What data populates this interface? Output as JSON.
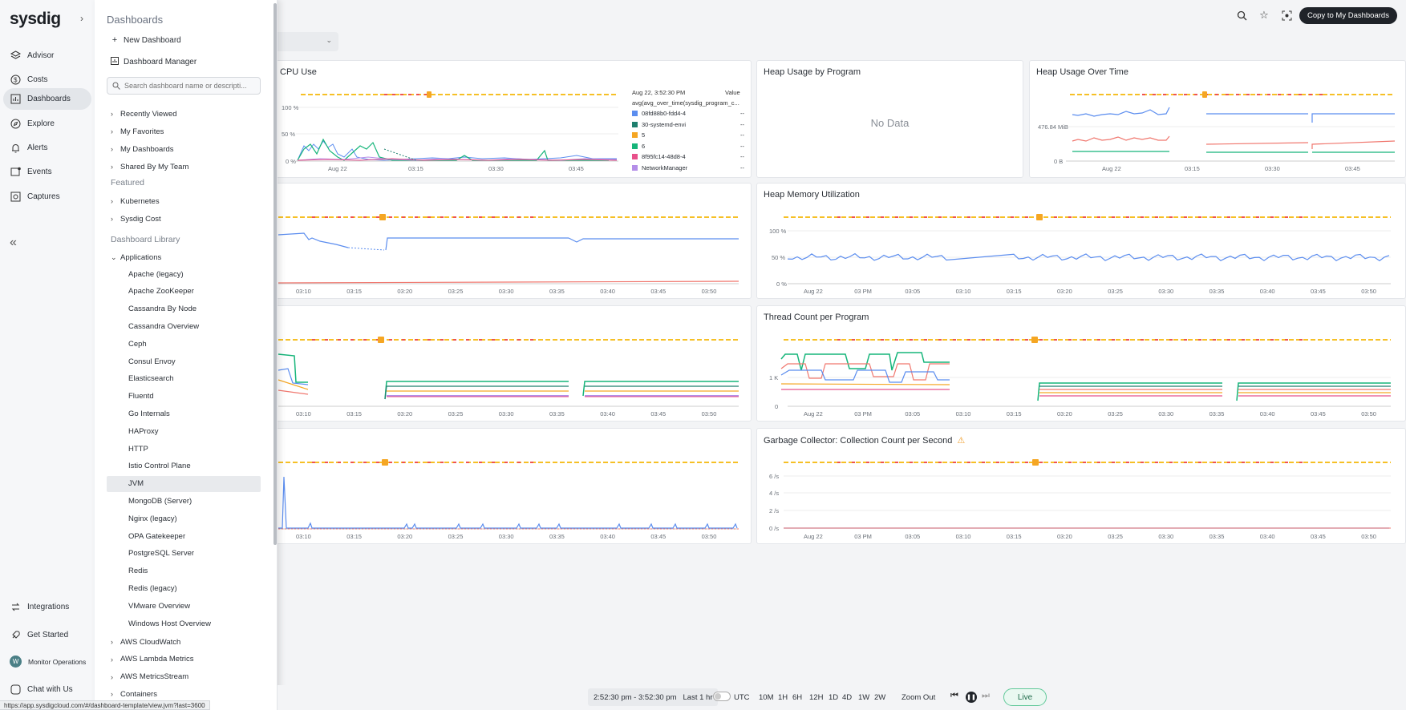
{
  "app": {
    "logo": "sysdig"
  },
  "nav": {
    "items": [
      {
        "label": "Advisor",
        "icon": "layers-icon"
      },
      {
        "label": "Costs",
        "icon": "dollar-icon"
      },
      {
        "label": "Dashboards",
        "icon": "chart-icon"
      },
      {
        "label": "Explore",
        "icon": "compass-icon"
      },
      {
        "label": "Alerts",
        "icon": "bell-icon"
      },
      {
        "label": "Events",
        "icon": "events-icon"
      },
      {
        "label": "Captures",
        "icon": "capture-icon"
      }
    ],
    "bottom": [
      {
        "label": "Integrations",
        "icon": "integrations-icon"
      },
      {
        "label": "Get Started",
        "icon": "rocket-icon"
      },
      {
        "label": "Monitor Operations",
        "avatar": "W"
      },
      {
        "label": "Chat with Us",
        "icon": "chat-icon"
      }
    ]
  },
  "panel": {
    "title": "Dashboards",
    "new_dashboard": "New Dashboard",
    "dashboard_manager": "Dashboard Manager",
    "search_placeholder": "Search dashboard name or descripti...",
    "groups": [
      "Recently Viewed",
      "My Favorites",
      "My Dashboards",
      "Shared By My Team"
    ],
    "featured_label": "Featured",
    "featured": [
      "Kubernetes",
      "Sysdig Cost"
    ],
    "library_label": "Dashboard Library",
    "applications_label": "Applications",
    "applications": [
      "Apache (legacy)",
      "Apache ZooKeeper",
      "Cassandra By Node",
      "Cassandra Overview",
      "Ceph",
      "Consul Envoy",
      "Elasticsearch",
      "Fluentd",
      "Go Internals",
      "HAProxy",
      "HTTP",
      "Istio Control Plane",
      "JVM",
      "MongoDB (Server)",
      "Nginx (legacy)",
      "OPA Gatekeeper",
      "PostgreSQL Server",
      "Redis",
      "Redis (legacy)",
      "VMware Overview",
      "Windows Host Overview"
    ],
    "selected": "JVM",
    "more_groups": [
      "AWS CloudWatch",
      "AWS Lambda Metrics",
      "AWS MetricsStream",
      "Containers"
    ]
  },
  "status_url": "https://app.sysdigcloud.com/#/dashboard-template/view.jvm?last=3600",
  "topbar": {
    "copy_button": "Copy to My Dashboards"
  },
  "widgets": {
    "cpu": {
      "title": "CPU Use",
      "y_ticks": [
        "100 %",
        "50 %",
        "0 %"
      ],
      "x_ticks": [
        "Aug 22",
        "03:15",
        "03:30",
        "03:45"
      ],
      "legend_time": "Aug 22, 3:52:30 PM",
      "legend_value_header": "Value",
      "legend_query": "avg(avg_over_time(sysdig_program_c...",
      "legend": [
        {
          "name": "08fd88b0-fdd4-4",
          "color": "#5b8def",
          "value": "--"
        },
        {
          "name": "30-systemd-envi",
          "color": "#1e7f6e",
          "value": "--"
        },
        {
          "name": "5",
          "color": "#f5a623",
          "value": "--"
        },
        {
          "name": "6",
          "color": "#16b57a",
          "value": "--"
        },
        {
          "name": "8f95fc14-48d8-4",
          "color": "#e8508a",
          "value": "--"
        },
        {
          "name": "NetworkManager",
          "color": "#b48ee8",
          "value": "--"
        }
      ]
    },
    "heap_program": {
      "title": "Heap Usage by Program",
      "nodata": "No Data"
    },
    "heap_time": {
      "title": "Heap Usage Over Time",
      "y_ticks": [
        "476.84 MiB",
        "0 B"
      ],
      "x_ticks": [
        "Aug 22",
        "03:15",
        "03:30",
        "03:45"
      ]
    },
    "row2_left": {
      "x_ticks": [
        "03:10",
        "03:15",
        "03:20",
        "03:25",
        "03:30",
        "03:35",
        "03:40",
        "03:45",
        "03:50"
      ]
    },
    "heap_mem": {
      "title": "Heap Memory Utilization",
      "y_ticks": [
        "100 %",
        "50 %",
        "0 %"
      ],
      "x_ticks": [
        "Aug 22",
        "03 PM",
        "03:05",
        "03:10",
        "03:15",
        "03:20",
        "03:25",
        "03:30",
        "03:35",
        "03:40",
        "03:45",
        "03:50"
      ]
    },
    "row3_left": {
      "x_ticks": [
        "03:10",
        "03:15",
        "03:20",
        "03:25",
        "03:30",
        "03:35",
        "03:40",
        "03:45",
        "03:50"
      ]
    },
    "thread": {
      "title": "Thread Count per Program",
      "y_ticks": [
        "1 K",
        "0"
      ],
      "x_ticks": [
        "Aug 22",
        "03 PM",
        "03:05",
        "03:10",
        "03:15",
        "03:20",
        "03:25",
        "03:30",
        "03:35",
        "03:40",
        "03:45",
        "03:50"
      ]
    },
    "row4_left": {
      "x_ticks": [
        "03:10",
        "03:15",
        "03:20",
        "03:25",
        "03:30",
        "03:35",
        "03:40",
        "03:45",
        "03:50"
      ]
    },
    "gc": {
      "title": "Garbage Collector: Collection Count per Second",
      "y_ticks": [
        "6 /s",
        "4 /s",
        "2 /s",
        "0 /s"
      ],
      "x_ticks": [
        "Aug 22",
        "03 PM",
        "03:05",
        "03:10",
        "03:15",
        "03:20",
        "03:25",
        "03:30",
        "03:35",
        "03:40",
        "03:45",
        "03:50"
      ]
    }
  },
  "bottom": {
    "timerange": "2:52:30 pm - 3:52:30 pm",
    "last": "Last 1 hr",
    "utc": "UTC",
    "ranges": [
      "10M",
      "1H",
      "6H",
      "12H",
      "1D",
      "4D",
      "1W",
      "2W"
    ],
    "zoom_out": "Zoom Out",
    "live": "Live"
  },
  "colors": {
    "accent_green": "#61c99a",
    "event_red": "#ef5350",
    "event_orange": "#f5a623",
    "event_yellow": "#f6c026"
  }
}
